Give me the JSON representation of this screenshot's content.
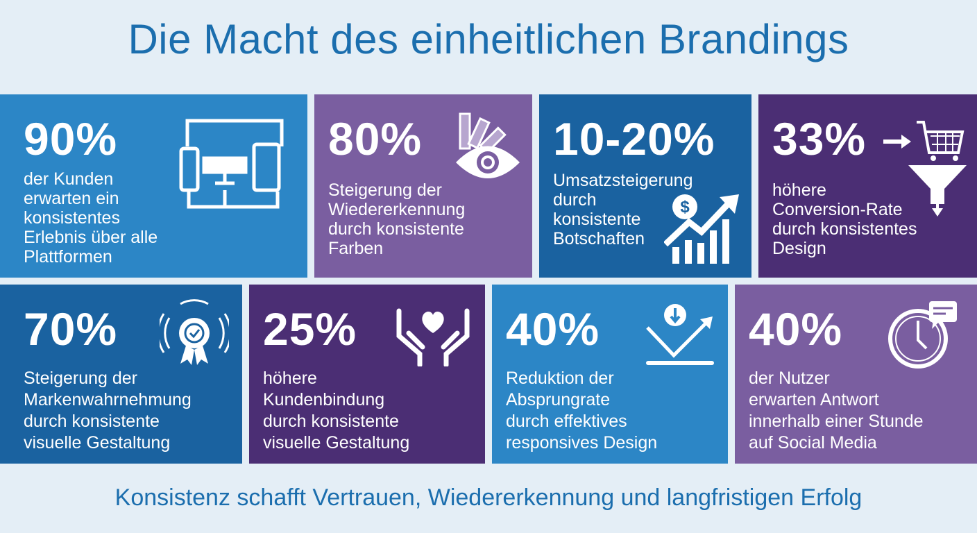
{
  "title": "Die Macht des einheitlichen Brandings",
  "footer": "Konsistenz schafft Vertrauen, Wiedererkennung und langfristigen Erfolg",
  "colors": {
    "bright_blue": "#2c86c6",
    "lavender": "#7a5ea0",
    "dark_blue": "#1a62a0",
    "dark_purple": "#4b2e74",
    "title": "#1b6eae"
  },
  "cards": [
    {
      "value": "90%",
      "text": "der Kunden\nerwarten ein\nkonsistentes\nErlebnis über alle\nPlattformen",
      "icon": "devices-icon"
    },
    {
      "value": "80%",
      "text": "Steigerung der\nWiedererkennung\ndurch konsistente\nFarben",
      "icon": "color-palette-eye-icon"
    },
    {
      "value": "10-20%",
      "text": "Umsatzsteigerung\ndurch\nkonsistente\nBotschaften",
      "icon": "revenue-growth-icon"
    },
    {
      "value": "33%",
      "text": "höhere\nConversion-Rate\ndurch konsistentes\nDesign",
      "icon": "cart-funnel-icon"
    },
    {
      "value": "70%",
      "text": "Steigerung der\nMarkenwahrnehmung\ndurch konsistente\nvisuelle Gestaltung",
      "icon": "award-badge-icon"
    },
    {
      "value": "25%",
      "text": "höhere\nKundenbindung\ndurch konsistente\nvisuelle Gestaltung",
      "icon": "heart-hands-icon"
    },
    {
      "value": "40%",
      "text": "Reduktion der\nAbsprungrate\ndurch effektives\nresponsives Design",
      "icon": "bounce-reduction-icon"
    },
    {
      "value": "40%",
      "text": "der Nutzer\nerwarten Antwort\ninnerhalb einer Stunde\nauf Social Media",
      "icon": "clock-chat-icon"
    }
  ]
}
